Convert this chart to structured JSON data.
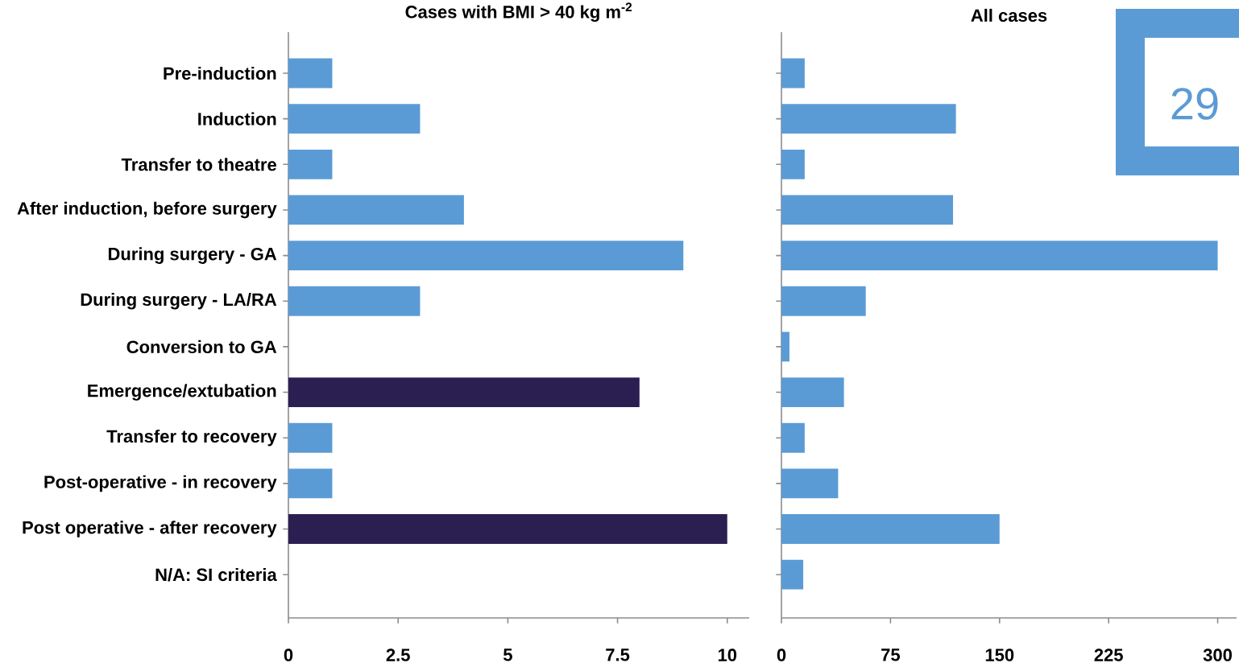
{
  "chart_data": [
    {
      "type": "bar",
      "orientation": "horizontal",
      "title": "Cases with BMI > 40 kg m$^{-2}$",
      "categories": [
        "Pre-induction",
        "Induction",
        "Transfer to theatre",
        "After induction, before surgery",
        "During surgery - GA",
        "During surgery - LA/RA",
        "Conversion to GA",
        "Emergence/extubation",
        "Transfer to recovery",
        "Post-operative - in recovery",
        "Post operative - after recovery",
        "N/A: SI criteria"
      ],
      "values": [
        1,
        3,
        1,
        4,
        9,
        3,
        0,
        8,
        1,
        1,
        10,
        0
      ],
      "colors": [
        "#5b9bd5",
        "#5b9bd5",
        "#5b9bd5",
        "#5b9bd5",
        "#5b9bd5",
        "#5b9bd5",
        "#5b9bd5",
        "#2b1f52",
        "#5b9bd5",
        "#5b9bd5",
        "#2b1f52",
        "#5b9bd5"
      ],
      "xlim": [
        0,
        10.5
      ],
      "xticks": [
        0,
        2.5,
        5,
        7.5,
        10
      ]
    },
    {
      "type": "bar",
      "orientation": "horizontal",
      "title": "All cases",
      "categories": [
        null,
        null,
        null,
        null,
        null,
        null,
        null,
        null,
        null,
        null,
        null,
        null
      ],
      "values": [
        16,
        120,
        16,
        118,
        300,
        58,
        5.5,
        43,
        16,
        39,
        150,
        15
      ],
      "colors": [
        "#5b9bd5",
        "#5b9bd5",
        "#5b9bd5",
        "#5b9bd5",
        "#5b9bd5",
        "#5b9bd5",
        "#5b9bd5",
        "#5b9bd5",
        "#5b9bd5",
        "#5b9bd5",
        "#5b9bd5",
        "#5b9bd5"
      ],
      "xlim": [
        0,
        313
      ],
      "xticks": [
        0,
        75,
        150,
        225,
        300
      ],
      "annotations": [
        "29"
      ]
    }
  ]
}
